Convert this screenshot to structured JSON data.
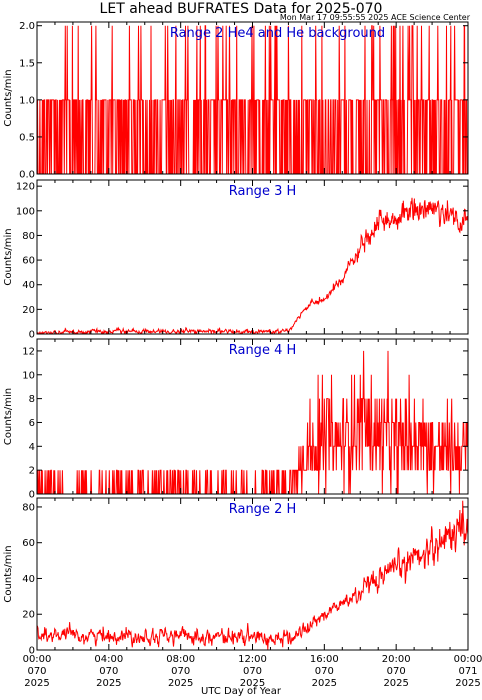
{
  "header": {
    "title": "LET ahead BUFRATES Data for 2025-070",
    "timestamp": "Mon Mar 17 09:55:55 2025 ACE Science Center"
  },
  "x_axis": {
    "label": "UTC Day of Year",
    "ticks": [
      {
        "hour": 0,
        "lines": [
          "00:00",
          "070",
          "2025"
        ]
      },
      {
        "hour": 4,
        "lines": [
          "04:00",
          "070",
          "2025"
        ]
      },
      {
        "hour": 8,
        "lines": [
          "08:00",
          "070",
          "2025"
        ]
      },
      {
        "hour": 12,
        "lines": [
          "12:00",
          "070",
          "2025"
        ]
      },
      {
        "hour": 16,
        "lines": [
          "16:00",
          "070",
          "2025"
        ]
      },
      {
        "hour": 20,
        "lines": [
          "20:00",
          "070",
          "2025"
        ]
      },
      {
        "hour": 24,
        "lines": [
          "00:00",
          "071",
          "2025"
        ]
      }
    ]
  },
  "colors": {
    "series": "#ff0000",
    "title_text": "#0000cc",
    "axes": "#000000"
  },
  "chart_data": [
    {
      "type": "line",
      "title": "Range 2 He4 and He background",
      "ylabel": "Counts/min",
      "xlim": [
        0,
        24
      ],
      "ylim": [
        0,
        2.05
      ],
      "yticks": [
        "0.0",
        "0.5",
        "1.0",
        "1.5",
        "2.0"
      ],
      "ytick_values": [
        0,
        0.5,
        1.0,
        1.5,
        2.0
      ],
      "profile": {
        "x": [
          0,
          24
        ],
        "y": [
          0.6,
          0.6
        ]
      },
      "noise": {
        "kind": "discrete",
        "levels": [
          0,
          1,
          2
        ],
        "spike_prob": 0.07
      },
      "values_note": "Values alternate between 0 and 1 with occasional 2"
    },
    {
      "type": "line",
      "title": "Range 3 H",
      "ylabel": "Counts/min",
      "xlim": [
        0,
        24
      ],
      "ylim": [
        0,
        125
      ],
      "yticks": [
        "0",
        "20",
        "40",
        "60",
        "80",
        "100",
        "120"
      ],
      "ytick_values": [
        0,
        20,
        40,
        60,
        80,
        100,
        120
      ],
      "profile": {
        "x": [
          0,
          4,
          8,
          12,
          14,
          14.6,
          15.3,
          16,
          17,
          18,
          19,
          20,
          21,
          22,
          23,
          24
        ],
        "y": [
          1,
          2,
          2,
          2,
          2,
          15,
          25,
          28,
          45,
          70,
          88,
          95,
          100,
          103,
          97,
          88
        ]
      },
      "noise": {
        "kind": "gaussian",
        "scale": 0.09,
        "floor": 1.5
      }
    },
    {
      "type": "line",
      "title": "Range 4 H",
      "ylabel": "Counts/min",
      "xlim": [
        0,
        24
      ],
      "ylim": [
        0,
        13
      ],
      "yticks": [
        "0",
        "2",
        "4",
        "6",
        "8",
        "10",
        "12"
      ],
      "ytick_values": [
        0,
        2,
        4,
        6,
        8,
        10,
        12
      ],
      "profile": {
        "x": [
          0,
          4,
          8,
          12,
          14,
          14.5,
          15,
          16,
          17,
          18,
          19,
          20,
          21,
          22,
          23,
          24
        ],
        "y": [
          0.2,
          0.2,
          0.2,
          0.2,
          0.3,
          1.5,
          3,
          3.5,
          4,
          5,
          4.5,
          4,
          4,
          3.5,
          3,
          3
        ]
      },
      "noise": {
        "kind": "poisson_even",
        "step": 1
      }
    },
    {
      "type": "line",
      "title": "Range 2 H",
      "ylabel": "Counts/min",
      "xlim": [
        0,
        24
      ],
      "ylim": [
        0,
        85
      ],
      "yticks": [
        "0",
        "20",
        "40",
        "60",
        "80"
      ],
      "ytick_values": [
        0,
        20,
        40,
        60,
        80
      ],
      "profile": {
        "x": [
          0,
          4,
          8,
          12,
          14,
          15,
          16,
          17,
          18,
          19,
          20,
          21,
          22,
          23,
          24
        ],
        "y": [
          8,
          8,
          8,
          7,
          6,
          12,
          20,
          26,
          32,
          38,
          45,
          52,
          58,
          65,
          70
        ]
      },
      "noise": {
        "kind": "gaussian",
        "scale": 0.14,
        "floor": 3.5
      }
    }
  ]
}
